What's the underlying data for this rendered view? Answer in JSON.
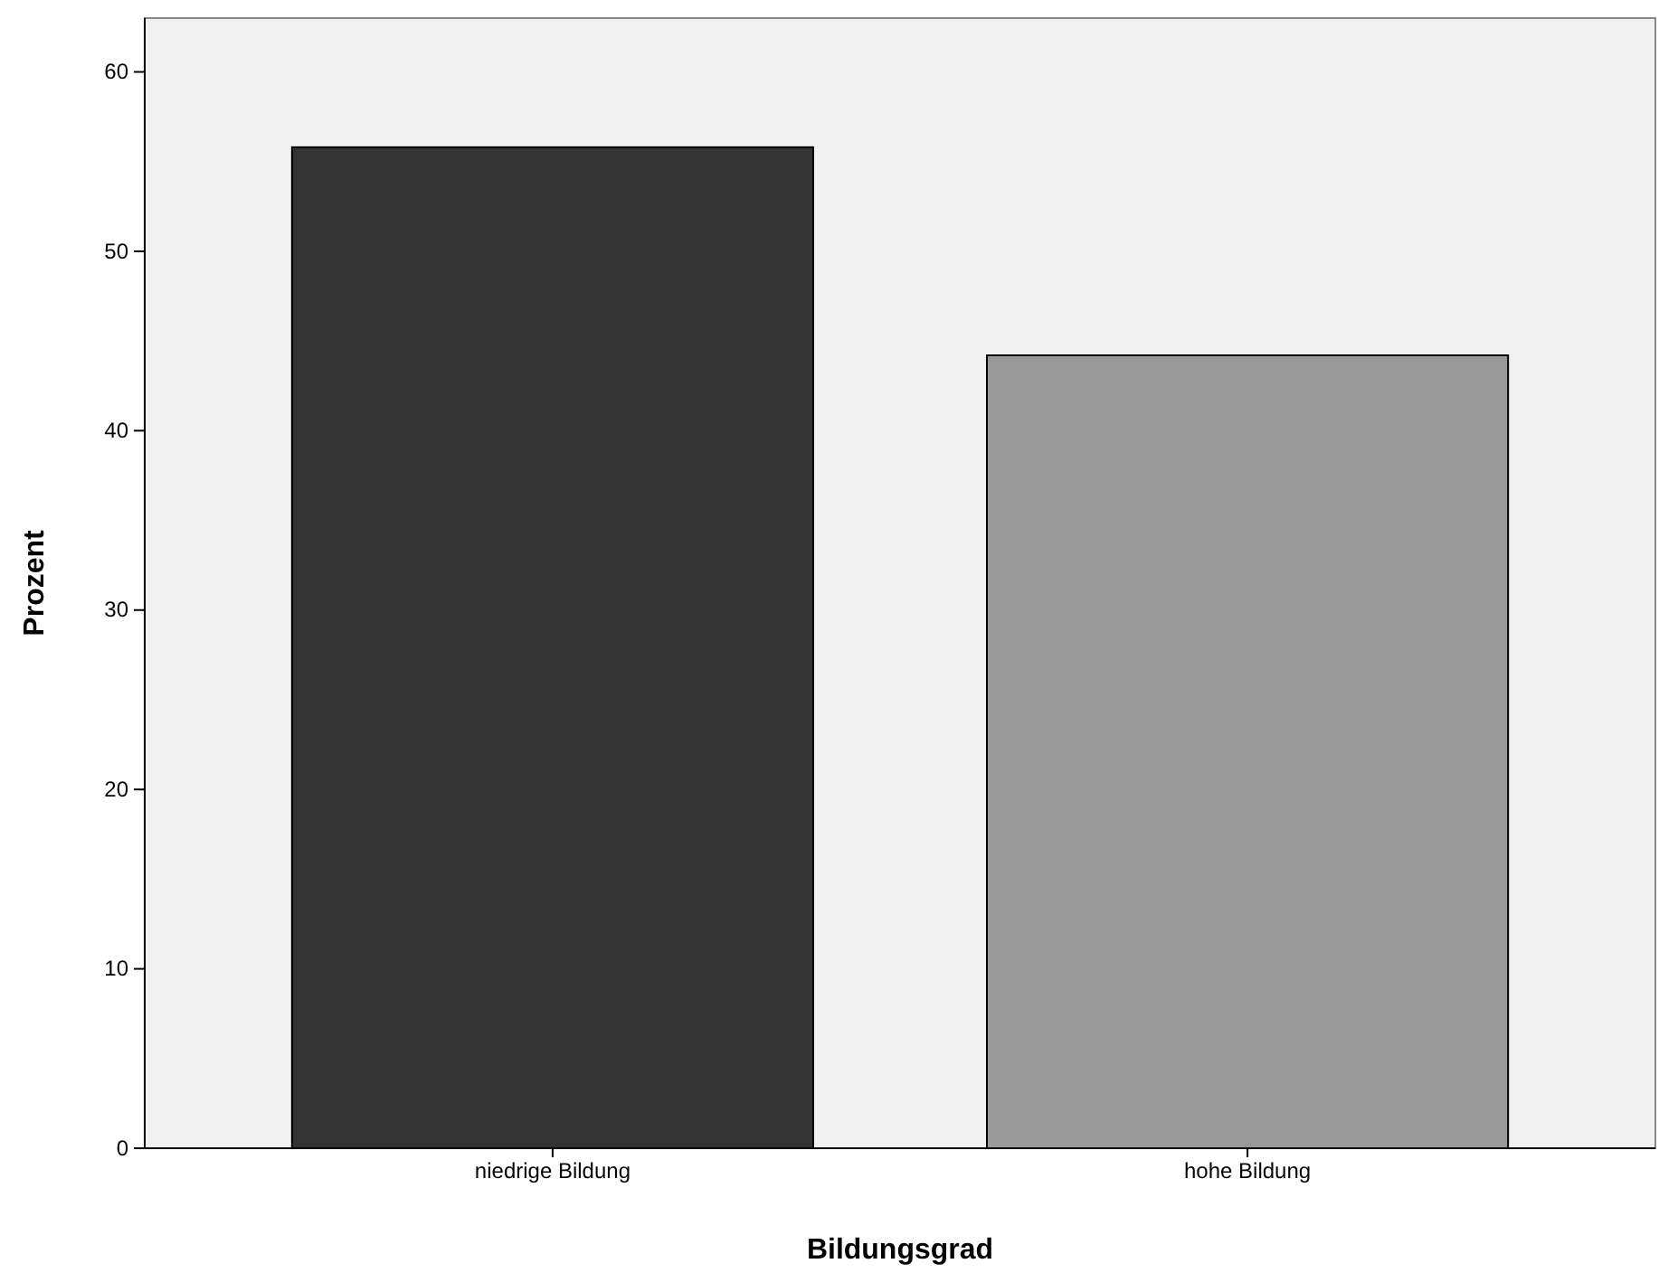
{
  "chart_data": {
    "type": "bar",
    "xlabel": "Bildungsgrad",
    "ylabel": "Prozent",
    "categories": [
      "niedrige Bildung",
      "hohe Bildung"
    ],
    "values": [
      55.8,
      44.2
    ],
    "colors": [
      "#333333",
      "#999999"
    ],
    "ylim": [
      0,
      63
    ],
    "yticks": [
      0,
      10,
      20,
      30,
      40,
      50,
      60
    ],
    "grid": false
  }
}
